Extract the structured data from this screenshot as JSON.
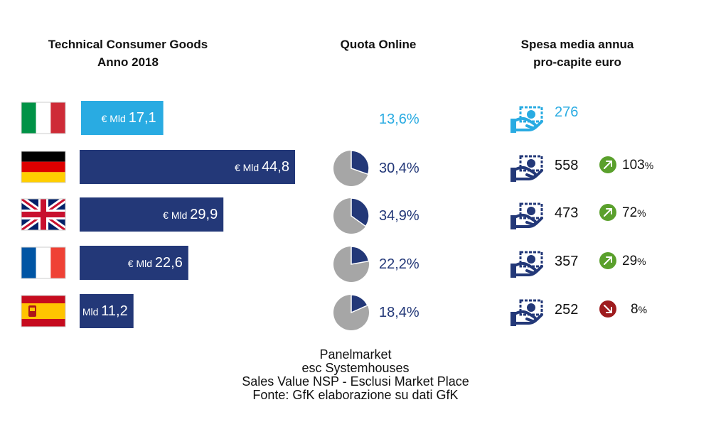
{
  "headers": {
    "left": [
      "Technical Consumer Goods",
      "Anno 2018"
    ],
    "middle": [
      "Quota Online"
    ],
    "right": [
      "Spesa media annua",
      "pro-capite euro"
    ]
  },
  "colors": {
    "highlight": "#29abe2",
    "primary": "#233878",
    "pie_rest": "#a6a6a6",
    "arrow_up": "#5aa02c",
    "arrow_down": "#9e1b1e"
  },
  "chart_data": {
    "type": "bar",
    "categories": [
      "Italia",
      "Germania",
      "Regno Unito",
      "Francia",
      "Spagna"
    ],
    "bar_prefix": "€ Mld",
    "series": [
      {
        "values": [
          17.1,
          44.8,
          29.9,
          22.6,
          11.2
        ]
      }
    ],
    "bar_labels": [
      "17,1",
      "44,8",
      "29,9",
      "22,6",
      "11,2"
    ],
    "online_share": [
      13.6,
      30.4,
      34.9,
      22.2,
      18.4
    ],
    "online_share_labels": [
      "13,6%",
      "30,4%",
      "34,9%",
      "22,2%",
      "18,4%"
    ],
    "spend_per_capita": [
      276,
      558,
      473,
      357,
      252
    ],
    "spend_labels": [
      "276",
      "558",
      "473",
      "357",
      "252"
    ],
    "diff_vs_italy": [
      null,
      "103",
      "72",
      "29",
      "8"
    ],
    "diff_suffix": "%",
    "diff_direction": [
      null,
      "up",
      "up",
      "up",
      "down"
    ],
    "flags": [
      "italy-flag-icon",
      "germany-flag-icon",
      "uk-flag-icon",
      "france-flag-icon",
      "spain-flag-icon"
    ]
  },
  "footer": [
    "Panelmarket",
    "esc Systemhouses",
    "Sales Value NSP - Esclusi Market Place",
    "Fonte: GfK elaborazione su dati GfK"
  ]
}
